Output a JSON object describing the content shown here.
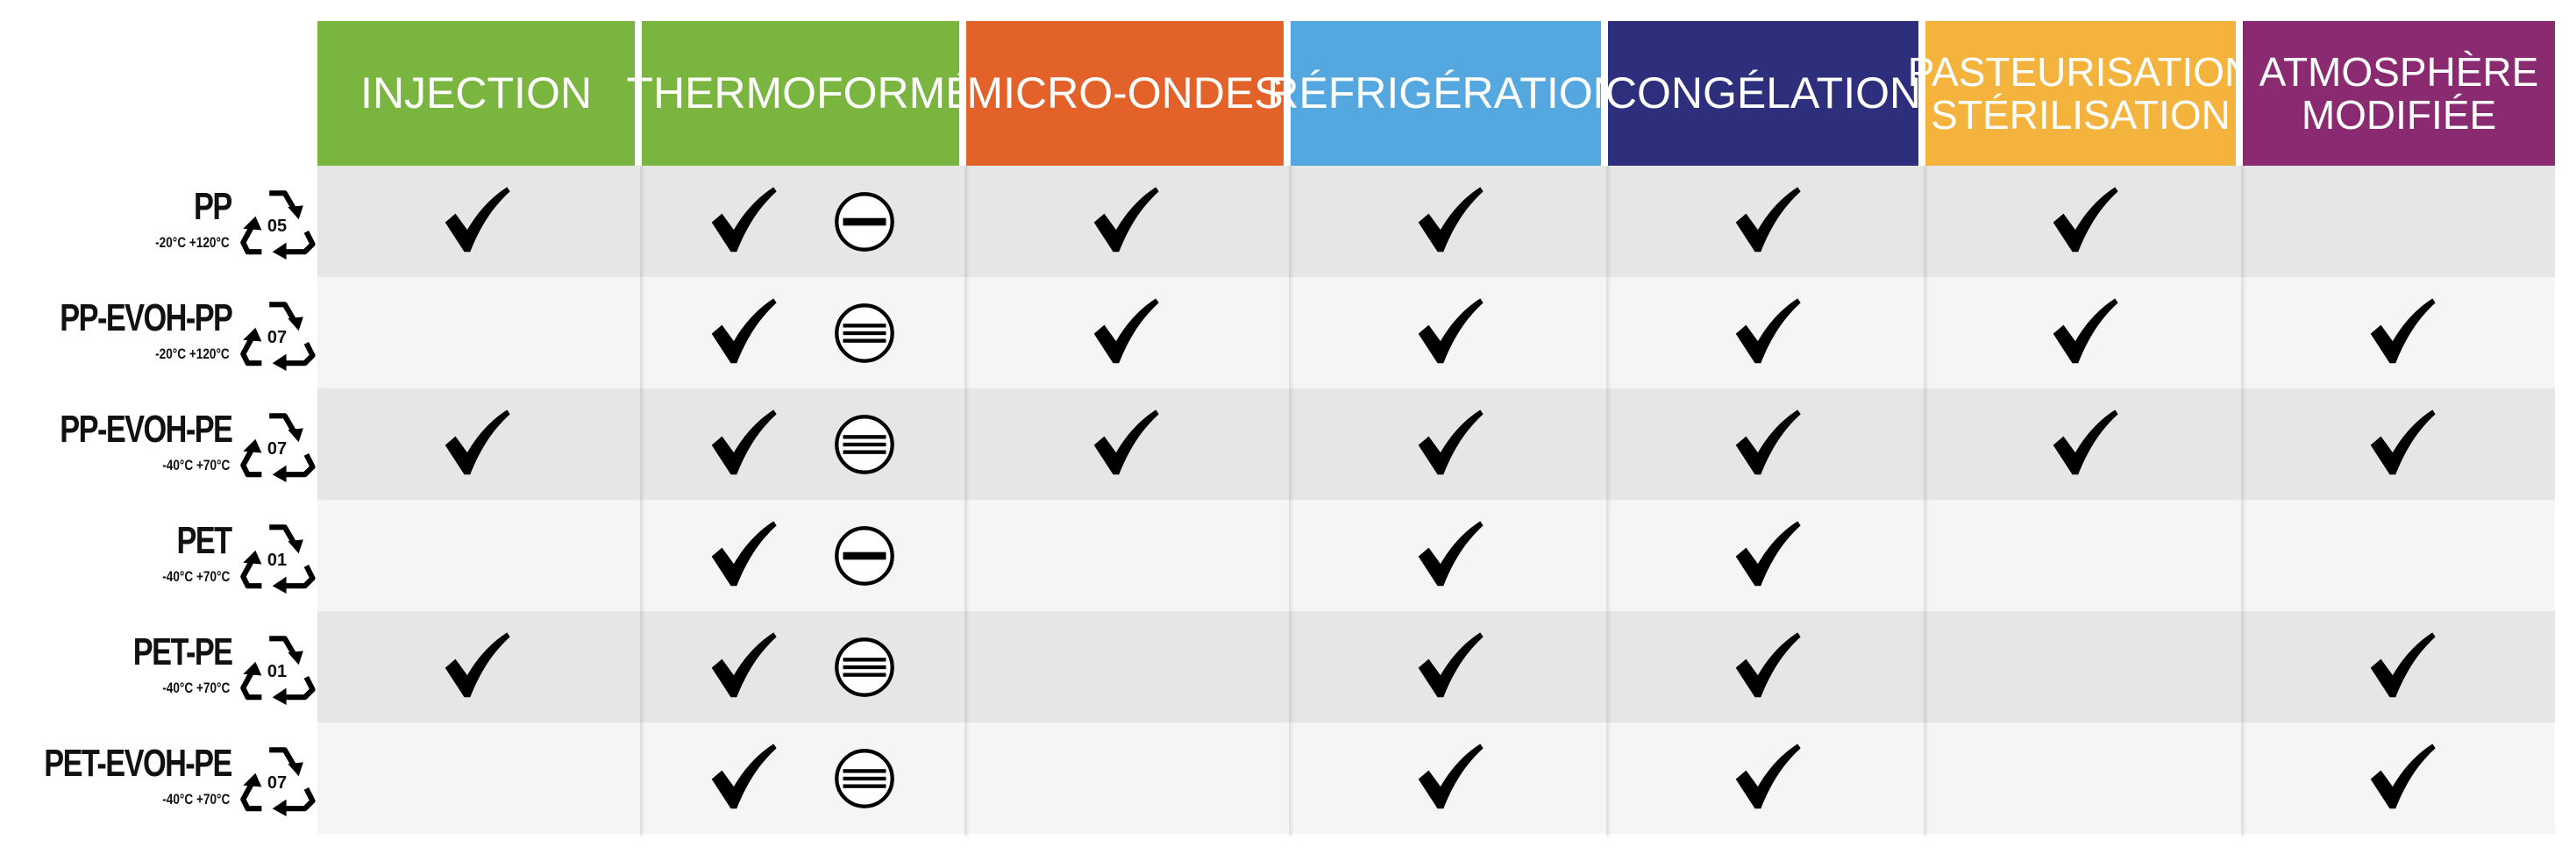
{
  "table": {
    "columns": [
      {
        "key": "injection",
        "lines": [
          "INJECTION"
        ],
        "color": "#7ab53f"
      },
      {
        "key": "thermoforme",
        "lines": [
          "THERMOFORMÉ"
        ],
        "color": "#7ab53f"
      },
      {
        "key": "micro_ondes",
        "lines": [
          "MICRO-ONDES"
        ],
        "color": "#e2622a"
      },
      {
        "key": "refrigeration",
        "lines": [
          "RÉFRIGÉRATION"
        ],
        "color": "#55a8df"
      },
      {
        "key": "congelation",
        "lines": [
          "CONGÉLATION"
        ],
        "color": "#2e2f7c"
      },
      {
        "key": "pasteurisation",
        "lines": [
          "PASTEURISATION",
          "STÉRILISATION"
        ],
        "color": "#f4b33d"
      },
      {
        "key": "atmosphere",
        "lines": [
          "ATMOSPHÈRE",
          "MODIFIÉE"
        ],
        "color": "#8a2a70"
      }
    ],
    "rows": [
      {
        "name": "PP",
        "temp": "-20°C +120°C",
        "recycle_code": "05",
        "barrier": "one-line",
        "checks": [
          true,
          true,
          true,
          true,
          true,
          true,
          false
        ]
      },
      {
        "name": "PP-EVOH-PP",
        "temp": "-20°C +120°C",
        "recycle_code": "07",
        "barrier": "three-lines",
        "checks": [
          false,
          true,
          true,
          true,
          true,
          true,
          true
        ]
      },
      {
        "name": "PP-EVOH-PE",
        "temp": "-40°C +70°C",
        "recycle_code": "07",
        "barrier": "three-lines",
        "checks": [
          true,
          true,
          true,
          true,
          true,
          true,
          true
        ]
      },
      {
        "name": "PET",
        "temp": "-40°C +70°C",
        "recycle_code": "01",
        "barrier": "one-line",
        "checks": [
          false,
          true,
          false,
          true,
          true,
          false,
          false
        ]
      },
      {
        "name": "PET-PE",
        "temp": "-40°C +70°C",
        "recycle_code": "01",
        "barrier": "three-lines",
        "checks": [
          true,
          true,
          false,
          true,
          true,
          false,
          true
        ]
      },
      {
        "name": "PET-EVOH-PE",
        "temp": "-40°C +70°C",
        "recycle_code": "07",
        "barrier": "three-lines",
        "checks": [
          false,
          true,
          false,
          true,
          true,
          false,
          true
        ]
      }
    ],
    "icons": {
      "check": "checkmark-icon",
      "recycle": "recycle-triangle-icon",
      "barrier": "barrier-level-icon"
    }
  }
}
